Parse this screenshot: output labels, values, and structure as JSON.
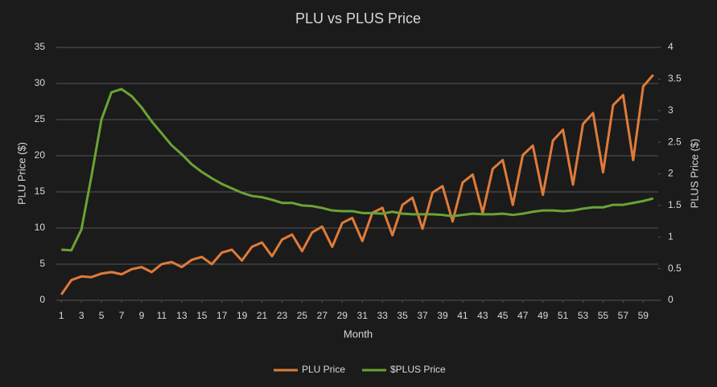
{
  "chart_data": {
    "type": "line",
    "title": "PLU vs PLUS Price",
    "x_label": "Month",
    "y_label": "PLU Price ($)",
    "y2_label": "PLUS Price ($)",
    "x": [
      1,
      2,
      3,
      4,
      5,
      6,
      7,
      8,
      9,
      10,
      11,
      12,
      13,
      14,
      15,
      16,
      17,
      18,
      19,
      20,
      21,
      22,
      23,
      24,
      25,
      26,
      27,
      28,
      29,
      30,
      31,
      32,
      33,
      34,
      35,
      36,
      37,
      38,
      39,
      40,
      41,
      42,
      43,
      44,
      45,
      46,
      47,
      48,
      49,
      50,
      51,
      52,
      53,
      54,
      55,
      56,
      57,
      58,
      59,
      60
    ],
    "xlim": [
      0.5,
      60.5
    ],
    "xticks": [
      1,
      3,
      5,
      7,
      9,
      11,
      13,
      15,
      17,
      19,
      21,
      23,
      25,
      27,
      29,
      31,
      33,
      35,
      37,
      39,
      41,
      43,
      45,
      47,
      49,
      51,
      53,
      55,
      57,
      59
    ],
    "ylim": [
      0,
      35
    ],
    "yticks": [
      0,
      5,
      10,
      15,
      20,
      25,
      30,
      35
    ],
    "y2lim": [
      0,
      4
    ],
    "y2ticks": [
      0,
      0.5,
      1,
      1.5,
      2,
      2.5,
      3,
      3.5,
      4
    ],
    "grid": true,
    "legend": "bottom",
    "series": [
      {
        "name": "PLU Price",
        "color": "#e07b39",
        "values": [
          0.8,
          2.8,
          3.3,
          3.2,
          3.7,
          3.9,
          3.6,
          4.3,
          4.6,
          3.9,
          5.0,
          5.3,
          4.6,
          5.6,
          6.0,
          5.0,
          6.6,
          7.0,
          5.5,
          7.4,
          8.0,
          6.1,
          8.4,
          9.1,
          6.8,
          9.4,
          10.2,
          7.4,
          10.7,
          11.4,
          8.2,
          12.1,
          12.8,
          9.0,
          13.2,
          14.2,
          9.9,
          14.9,
          15.8,
          10.9,
          16.3,
          17.4,
          12.1,
          18.2,
          19.4,
          13.2,
          20.1,
          21.4,
          14.6,
          22.1,
          23.6,
          16.0,
          24.4,
          25.9,
          17.7,
          27.0,
          28.4,
          19.4,
          29.6,
          31.2
        ]
      },
      {
        "name": "$PLUS Price",
        "color": "#6aa336",
        "axis": "y2",
        "values": [
          0.8,
          0.79,
          1.12,
          1.96,
          2.86,
          3.29,
          3.34,
          3.23,
          3.05,
          2.83,
          2.64,
          2.45,
          2.31,
          2.15,
          2.03,
          1.93,
          1.84,
          1.77,
          1.7,
          1.65,
          1.63,
          1.59,
          1.54,
          1.54,
          1.5,
          1.49,
          1.46,
          1.42,
          1.41,
          1.41,
          1.38,
          1.38,
          1.37,
          1.4,
          1.37,
          1.36,
          1.36,
          1.36,
          1.35,
          1.33,
          1.35,
          1.37,
          1.36,
          1.36,
          1.37,
          1.35,
          1.37,
          1.4,
          1.42,
          1.42,
          1.41,
          1.42,
          1.45,
          1.47,
          1.47,
          1.51,
          1.51,
          1.54,
          1.57,
          1.61
        ]
      }
    ]
  }
}
